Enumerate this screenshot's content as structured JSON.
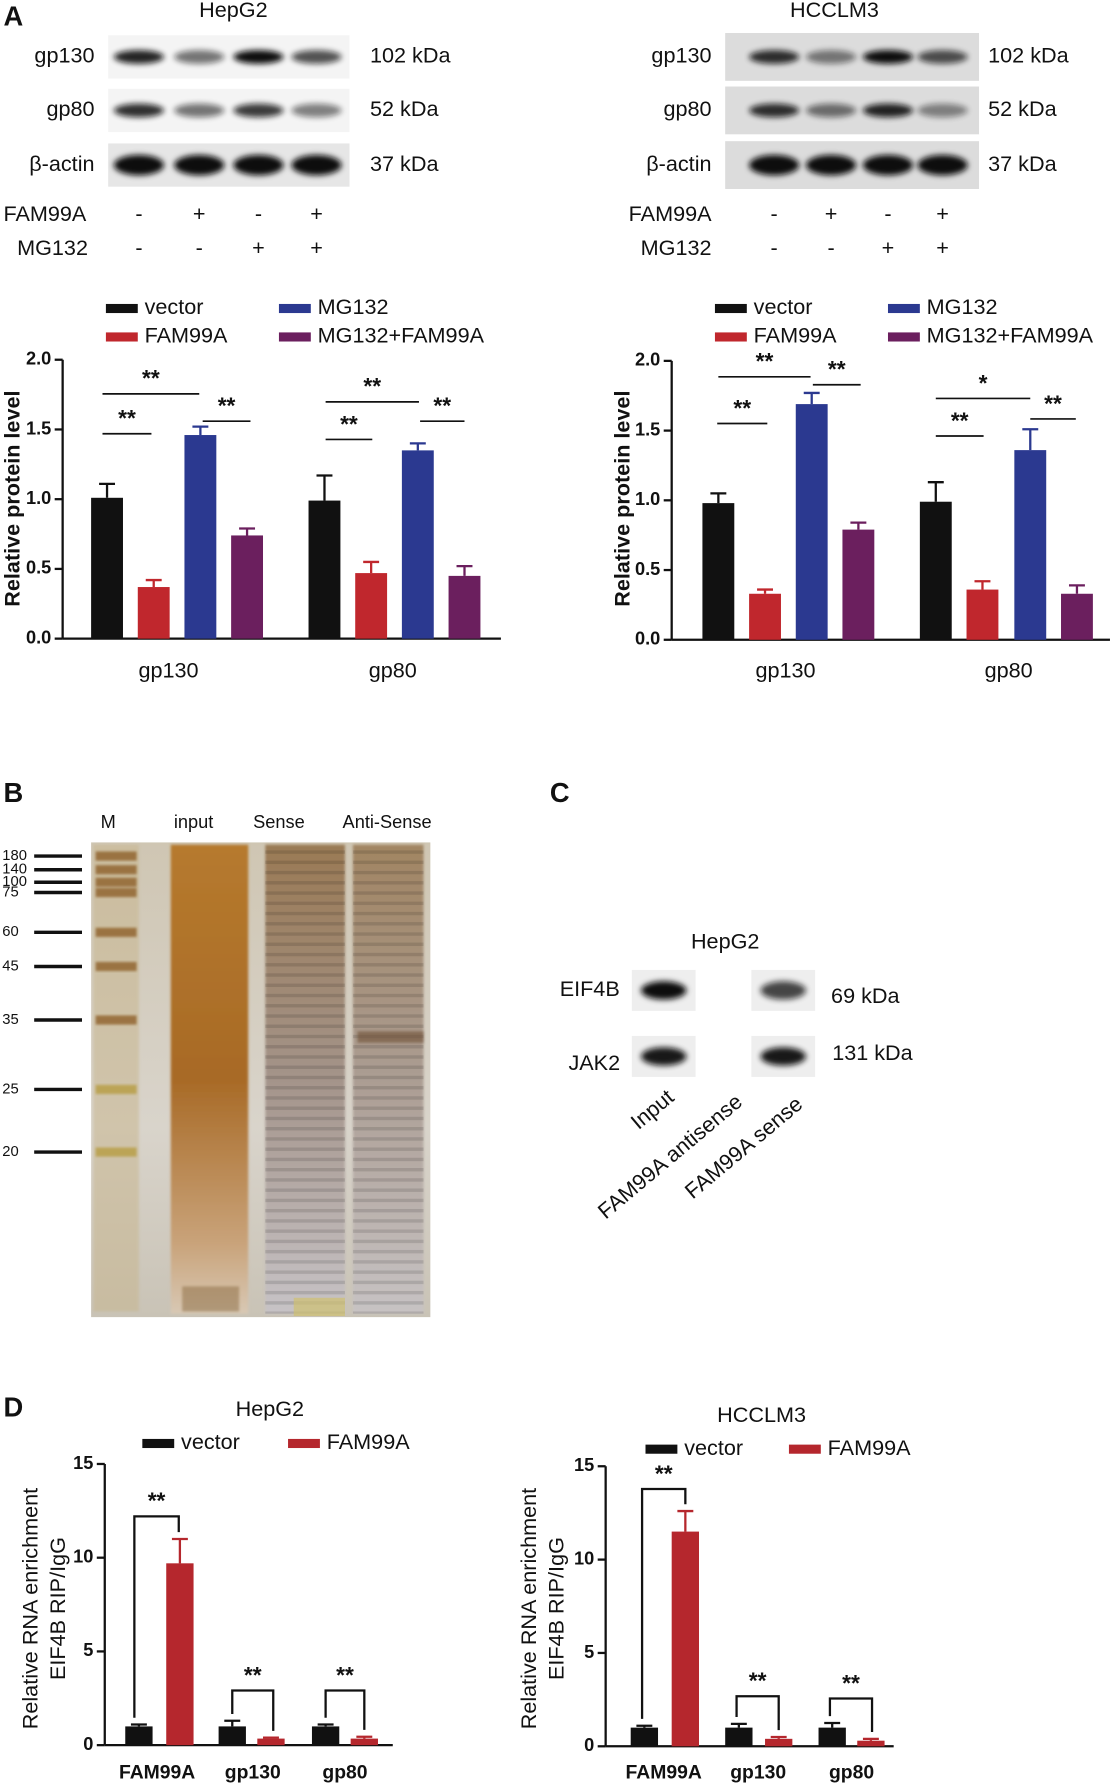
{
  "panel_labels": [
    "A",
    "B",
    "C",
    "D"
  ],
  "blots_a": [
    {
      "title": "HepG2",
      "proteins": [
        "gp130",
        "gp80",
        "β-actin"
      ],
      "sizes": [
        "102 kDa",
        "52 kDa",
        "37 kDa"
      ],
      "treatments": [
        {
          "name": "FAM99A",
          "signs": [
            "-",
            "+",
            "-",
            "+"
          ]
        },
        {
          "name": "MG132",
          "signs": [
            "-",
            "-",
            "+",
            "+"
          ]
        }
      ]
    },
    {
      "title": "HCCLM3",
      "proteins": [
        "gp130",
        "gp80",
        "β-actin"
      ],
      "sizes": [
        "102 kDa",
        "52 kDa",
        "37 kDa"
      ],
      "treatments": [
        {
          "name": "FAM99A",
          "signs": [
            "-",
            "+",
            "-",
            "+"
          ]
        },
        {
          "name": "MG132",
          "signs": [
            "-",
            "-",
            "+",
            "+"
          ]
        }
      ]
    }
  ],
  "gel_b": {
    "lanes": [
      "M",
      "input",
      "Sense",
      "Anti-Sense"
    ],
    "markers": [
      "180",
      "140",
      "100",
      "75",
      "60",
      "45",
      "35",
      "25",
      "20"
    ]
  },
  "blot_c": {
    "title": "HepG2",
    "proteins": [
      "EIF4B",
      "JAK2"
    ],
    "sizes": [
      "69 kDa",
      "131 kDa"
    ],
    "lanes": [
      "Input",
      "FAM99A antisense",
      "FAM99A sense"
    ]
  },
  "chart_data": [
    {
      "type": "bar",
      "ylabel": "Relative protein level",
      "categories": [
        "gp130",
        "gp80"
      ],
      "series": [
        {
          "name": "vector",
          "color": "#111111",
          "values": [
            1.01,
            0.99
          ],
          "errors": [
            0.1,
            0.18
          ]
        },
        {
          "name": "FAM99A",
          "color": "#c0272d",
          "values": [
            0.37,
            0.47
          ],
          "errors": [
            0.05,
            0.08
          ]
        },
        {
          "name": "MG132",
          "color": "#2b3990",
          "values": [
            1.46,
            1.35
          ],
          "errors": [
            0.06,
            0.05
          ]
        },
        {
          "name": "MG132+FAM99A",
          "color": "#6b1f5e",
          "values": [
            0.74,
            0.45
          ],
          "errors": [
            0.05,
            0.07
          ]
        }
      ],
      "ylim": [
        0,
        2
      ],
      "yticks": [
        {
          "value": 0,
          "label": "0.0"
        },
        {
          "value": 0.5,
          "label": "0.5"
        },
        {
          "value": 1,
          "label": "1.0"
        },
        {
          "value": 1.5,
          "label": "1.5"
        },
        {
          "value": 2,
          "label": "2.0"
        }
      ],
      "annotations": [
        "**",
        "**",
        "**",
        "**",
        "**",
        "**"
      ]
    },
    {
      "type": "bar",
      "ylabel": "Relative protein level",
      "categories": [
        "gp130",
        "gp80"
      ],
      "series": [
        {
          "name": "vector",
          "color": "#111111",
          "values": [
            0.98,
            0.99
          ],
          "errors": [
            0.07,
            0.14
          ]
        },
        {
          "name": "FAM99A",
          "color": "#c0272d",
          "values": [
            0.33,
            0.36
          ],
          "errors": [
            0.03,
            0.06
          ]
        },
        {
          "name": "MG132",
          "color": "#2b3990",
          "values": [
            1.69,
            1.36
          ],
          "errors": [
            0.08,
            0.15
          ]
        },
        {
          "name": "MG132+FAM99A",
          "color": "#6b1f5e",
          "values": [
            0.79,
            0.33
          ],
          "errors": [
            0.05,
            0.06
          ]
        }
      ],
      "ylim": [
        0,
        2
      ],
      "yticks": [
        {
          "value": 0,
          "label": "0.0"
        },
        {
          "value": 0.5,
          "label": "0.5"
        },
        {
          "value": 1,
          "label": "1.0"
        },
        {
          "value": 1.5,
          "label": "1.5"
        },
        {
          "value": 2,
          "label": "2.0"
        }
      ],
      "annotations": [
        "**",
        "**",
        "**",
        "**",
        "*",
        "**"
      ]
    },
    {
      "type": "bar",
      "title": "HepG2",
      "ylabel": [
        "Relative RNA enrichment",
        "EIF4B RIP/IgG"
      ],
      "categories": [
        "FAM99A",
        "gp130",
        "gp80"
      ],
      "series": [
        {
          "name": "vector",
          "color": "#111111",
          "values": [
            1.0,
            1.0,
            1.0
          ],
          "errors": [
            0.1,
            0.3,
            0.1
          ]
        },
        {
          "name": "FAM99A",
          "color": "#b5272d",
          "values": [
            9.7,
            0.35,
            0.35
          ],
          "errors": [
            1.3,
            0.05,
            0.1
          ]
        }
      ],
      "ylim": [
        0,
        15
      ],
      "yticks": [
        0,
        5,
        10,
        15
      ],
      "annotations": [
        "**",
        "**",
        "**"
      ]
    },
    {
      "type": "bar",
      "title": "HCCLM3",
      "ylabel": [
        "Relative RNA enrichment",
        "EIF4B RIP/IgG"
      ],
      "categories": [
        "FAM99A",
        "gp130",
        "gp80"
      ],
      "series": [
        {
          "name": "vector",
          "color": "#111111",
          "values": [
            1.0,
            1.0,
            1.0
          ],
          "errors": [
            0.1,
            0.2,
            0.25
          ]
        },
        {
          "name": "FAM99A",
          "color": "#b5272d",
          "values": [
            11.5,
            0.4,
            0.3
          ],
          "errors": [
            1.1,
            0.1,
            0.1
          ]
        }
      ],
      "ylim": [
        0,
        15
      ],
      "yticks": [
        0,
        5,
        10,
        15
      ],
      "annotations": [
        "**",
        "**",
        "**"
      ]
    }
  ]
}
